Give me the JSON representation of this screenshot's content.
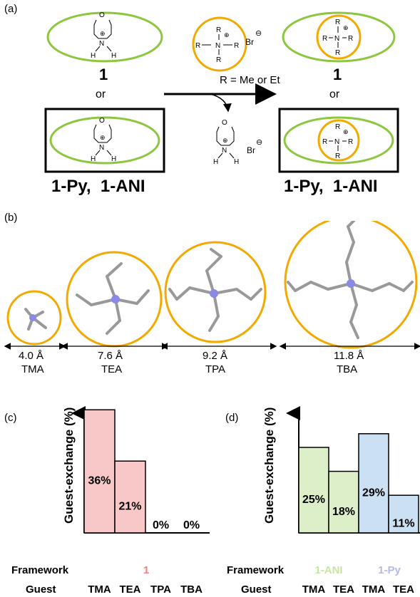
{
  "panel_a": {
    "label": "(a)",
    "left_top_number": "1",
    "left_or": "or",
    "left_bottom": "1-Py,  1-ANI",
    "right_top_number": "1",
    "right_or": "or",
    "right_bottom": "1-Py,  1-ANI",
    "r_note": "R = Me or Et",
    "br": "Br",
    "plus": "⊕",
    "minus": "⊖",
    "atoms": {
      "n": "N",
      "o": "O",
      "h": "H",
      "r": "R"
    },
    "colors": {
      "green": "#8dc63f",
      "orange": "#f2a900"
    }
  },
  "panel_b": {
    "label": "(b)",
    "molecules": [
      {
        "size": "4.0 Å",
        "name": "TMA"
      },
      {
        "size": "7.6 Å",
        "name": "TEA"
      },
      {
        "size": "9.2 Å",
        "name": "TPA"
      },
      {
        "size": "11.8 Å",
        "name": "TBA"
      }
    ]
  },
  "panel_c": {
    "label": "(c)",
    "ylabel": "Guest-exchange (%)",
    "framework_label": "Framework",
    "framework": "1",
    "guest_label": "Guest",
    "color": "#f8c8c8",
    "text_color": "#f08080"
  },
  "panel_d": {
    "label": "(d)",
    "ylabel": "Guest-exchange (%)",
    "framework_label": "Framework",
    "frameworks": [
      "1-ANI",
      "1-Py"
    ],
    "framework_colors": [
      "#c8e6a0",
      "#b8b8ea"
    ],
    "guest_label": "Guest",
    "bar_colors": [
      "#dcefc8",
      "#dcefc8",
      "#cce0f4",
      "#cce0f4"
    ]
  },
  "chart_data": [
    {
      "type": "bar",
      "categories": [
        "TMA",
        "TEA",
        "TPA",
        "TBA"
      ],
      "values": [
        36,
        21,
        0,
        0
      ],
      "data_labels": [
        "36%",
        "21%",
        "0%",
        "0%"
      ],
      "title": "",
      "xlabel": "Guest",
      "ylabel": "Guest-exchange (%)"
    },
    {
      "type": "bar",
      "categories": [
        "TMA",
        "TEA",
        "TMA",
        "TEA"
      ],
      "values": [
        25,
        18,
        29,
        11
      ],
      "data_labels": [
        "25%",
        "18%",
        "29%",
        "11%"
      ],
      "groups": [
        "1-ANI",
        "1-ANI",
        "1-Py",
        "1-Py"
      ],
      "title": "",
      "xlabel": "Guest",
      "ylabel": "Guest-exchange (%)"
    }
  ]
}
